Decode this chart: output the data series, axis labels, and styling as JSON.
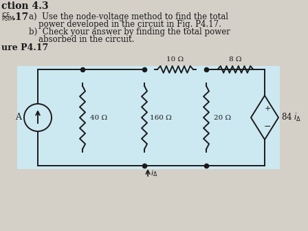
{
  "bg_color": "#d4d0c8",
  "wire_color": "#1a1a1a",
  "title_section": "ction 4.3",
  "problem_num": ".17",
  "label_ice": "ICE",
  "label_psim": "PSIM",
  "fig_label": "ure P4.17",
  "node_A": "A",
  "res_40": "40 Ω",
  "res_160": "160 Ω",
  "res_20": "20 Ω",
  "res_10": "10 Ω",
  "res_8": "8 Ω",
  "circuit_bg": "#cce8f0",
  "figsize": [
    4.48,
    3.36
  ],
  "dpi": 100
}
